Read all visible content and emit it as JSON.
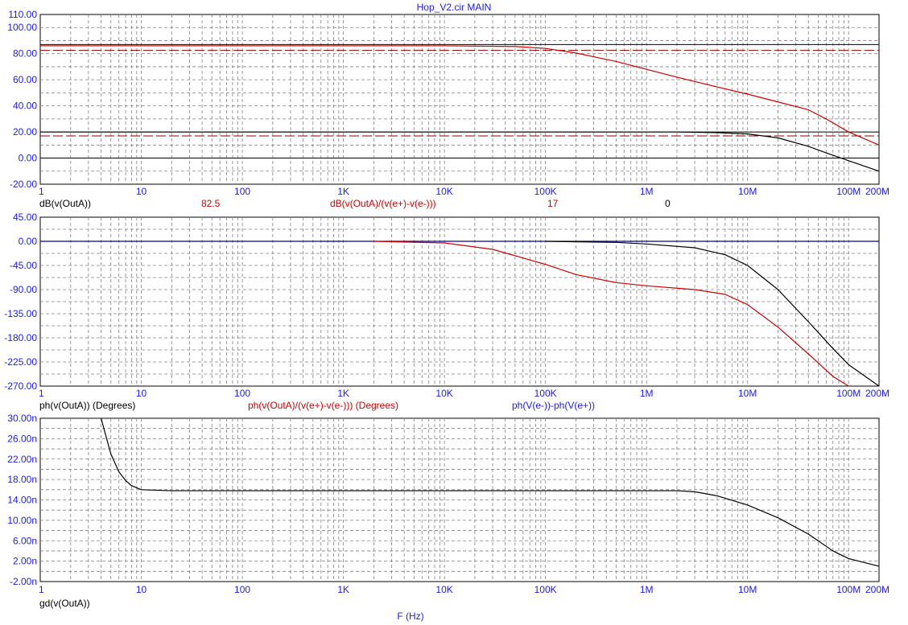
{
  "title": "Hop_V2.cir MAIN",
  "x_axis_label": "F (Hz)",
  "colors": {
    "axis_text": "#1a1aff",
    "grid": "#808080",
    "black": "#000000",
    "red": "#cc0000",
    "darkred": "#8b0000",
    "blue": "#000099"
  },
  "chart_data": [
    {
      "type": "line",
      "name": "magnitude",
      "xscale": "log",
      "xlim": [
        1,
        200000000
      ],
      "ylim": [
        -20,
        110
      ],
      "x_tick_labels": [
        "1",
        "10",
        "100",
        "1K",
        "10K",
        "100K",
        "1M",
        "10M",
        "100M",
        "200M"
      ],
      "y_tick_labels": [
        "110.00",
        "100.00",
        "80.00",
        "60.00",
        "40.00",
        "20.00",
        "0.00",
        "-20.00"
      ],
      "legend": [
        {
          "text": "dB(v(OutA))",
          "color": "#000000"
        },
        {
          "text": "82.5",
          "color": "#cc0000"
        },
        {
          "text": "dB(v(OutA)/(v(e+)-v(e-)))",
          "color": "#cc0000"
        },
        {
          "text": "17",
          "color": "#cc0000"
        },
        {
          "text": "0",
          "color": "#000000"
        }
      ],
      "hlines": [
        {
          "y": 82.5,
          "color": "#8b0000",
          "dash": true
        },
        {
          "y": 17,
          "color": "#8b0000",
          "dash": true
        },
        {
          "y": 0,
          "color": "#000000",
          "dash": false
        },
        {
          "y": 87,
          "color": "#000000",
          "dash": false
        },
        {
          "y": 20,
          "color": "#000000",
          "dash": false
        }
      ],
      "series": [
        {
          "color": "#cc0000",
          "x": [
            1,
            10000,
            50000,
            100000,
            200000,
            500000,
            1000000,
            2000000,
            5000000,
            10000000,
            20000000,
            40000000,
            60000000,
            100000000,
            200000000
          ],
          "y": [
            86,
            86,
            85.5,
            84,
            80.5,
            74,
            68,
            62,
            54.5,
            49,
            43,
            37,
            30,
            20,
            10
          ]
        },
        {
          "color": "#000000",
          "x": [
            1,
            2000000,
            5000000,
            10000000,
            20000000,
            40000000,
            60000000,
            100000000,
            200000000
          ],
          "y": [
            20,
            20,
            19.5,
            18.5,
            15.5,
            9,
            4,
            -2,
            -10
          ]
        }
      ]
    },
    {
      "type": "line",
      "name": "phase",
      "xscale": "log",
      "xlim": [
        1,
        200000000
      ],
      "ylim": [
        -270,
        45
      ],
      "x_tick_labels": [
        "1",
        "10",
        "100",
        "1K",
        "10K",
        "100K",
        "1M",
        "10M",
        "100M",
        "200M"
      ],
      "y_tick_labels": [
        "45.00",
        "0.00",
        "-45.00",
        "-90.00",
        "-135.00",
        "-180.00",
        "-225.00",
        "-270.00"
      ],
      "legend": [
        {
          "text": "ph(v(OutA)) (Degrees)",
          "color": "#000000"
        },
        {
          "text": "ph(v(OutA)/(v(e+)-v(e-))) (Degrees)",
          "color": "#cc0000"
        },
        {
          "text": "ph(V(e-))-ph(V(e+))",
          "color": "#1a1aff"
        }
      ],
      "series": [
        {
          "color": "#000099",
          "x": [
            1,
            200000000
          ],
          "y": [
            0,
            0
          ]
        },
        {
          "color": "#000000",
          "x": [
            100000,
            500000,
            1000000,
            3000000,
            6000000,
            10000000,
            20000000,
            40000000,
            70000000,
            100000000,
            200000000
          ],
          "y": [
            0,
            -2,
            -5,
            -12,
            -25,
            -45,
            -90,
            -150,
            -200,
            -230,
            -270
          ]
        },
        {
          "color": "#cc0000",
          "x": [
            2000,
            10000,
            30000,
            100000,
            200000,
            500000,
            1000000,
            3000000,
            6000000,
            10000000,
            20000000,
            40000000,
            70000000,
            100000000
          ],
          "y": [
            0,
            -3,
            -15,
            -43,
            -62,
            -77,
            -83,
            -90,
            -99,
            -118,
            -160,
            -210,
            -252,
            -270
          ]
        }
      ]
    },
    {
      "type": "line",
      "name": "group-delay",
      "xscale": "log",
      "xlim": [
        1,
        200000000
      ],
      "ylim": [
        -2,
        30
      ],
      "x_tick_labels": [
        "1",
        "10",
        "100",
        "1K",
        "10K",
        "100K",
        "1M",
        "10M",
        "100M",
        "200M"
      ],
      "y_tick_labels": [
        "30.00n",
        "26.00n",
        "22.00n",
        "18.00n",
        "14.00n",
        "10.00n",
        "6.00n",
        "2.00n",
        "-2.00n"
      ],
      "legend": [
        {
          "text": "gd(v(OutA))",
          "color": "#000000"
        }
      ],
      "series": [
        {
          "color": "#000000",
          "x": [
            4,
            5,
            6,
            7,
            8,
            10,
            20,
            100,
            2000000,
            3000000,
            5000000,
            10000000,
            20000000,
            40000000,
            70000000,
            100000000,
            200000000
          ],
          "y": [
            30,
            23,
            19.5,
            17.8,
            16.8,
            16,
            15.8,
            15.8,
            15.8,
            15.6,
            14.8,
            13,
            10.5,
            7.3,
            4,
            2.5,
            1
          ]
        }
      ]
    }
  ]
}
